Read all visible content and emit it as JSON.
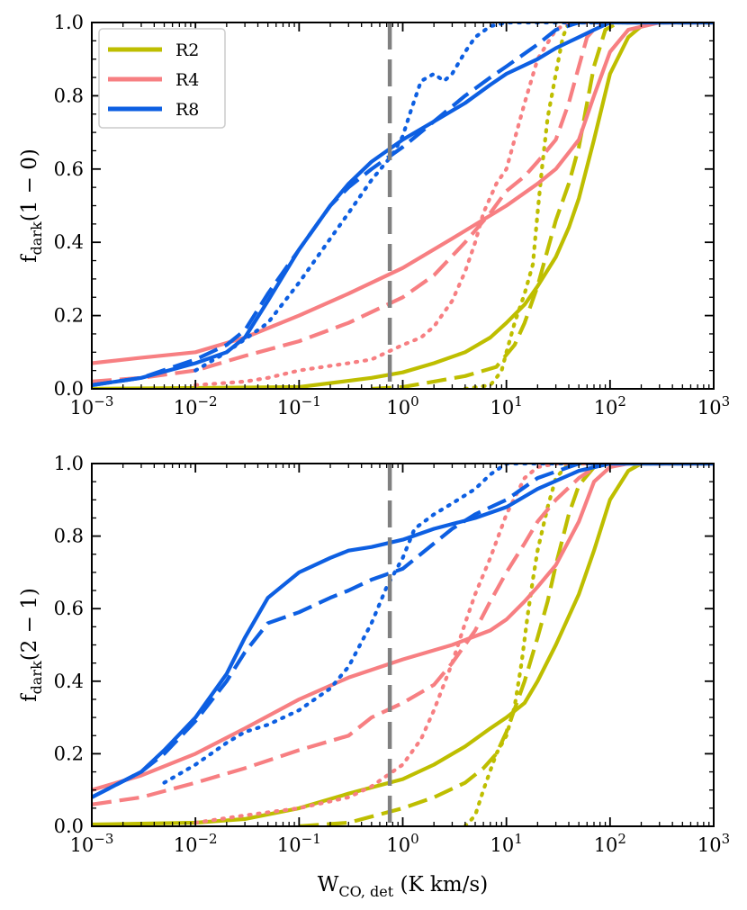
{
  "chart_data": [
    {
      "type": "line",
      "panel": "top",
      "ylabel_main": "f",
      "ylabel_sub": "dark",
      "ylabel_rest": "(1 − 0)",
      "xscale": "log",
      "xlim": [
        0.001,
        1000
      ],
      "ylim": [
        0,
        1
      ],
      "xticks": [
        {
          "value": 0.001,
          "base": "10",
          "exp": "−3"
        },
        {
          "value": 0.01,
          "base": "10",
          "exp": "−2"
        },
        {
          "value": 0.1,
          "base": "10",
          "exp": "−1"
        },
        {
          "value": 1,
          "base": "10",
          "exp": "0"
        },
        {
          "value": 10,
          "base": "10",
          "exp": "1"
        },
        {
          "value": 100,
          "base": "10",
          "exp": "2"
        },
        {
          "value": 1000,
          "base": "10",
          "exp": "3"
        }
      ],
      "yticks": [
        {
          "value": 0,
          "label": "0.0"
        },
        {
          "value": 0.2,
          "label": "0.2"
        },
        {
          "value": 0.4,
          "label": "0.4"
        },
        {
          "value": 0.6,
          "label": "0.6"
        },
        {
          "value": 0.8,
          "label": "0.8"
        },
        {
          "value": 1,
          "label": "1.0"
        }
      ],
      "vline_x": 0.75,
      "legend": {
        "placement": "top-left",
        "entries": [
          {
            "label": "R2",
            "color": "#BEBE00"
          },
          {
            "label": "R4",
            "color": "#F77F82"
          },
          {
            "label": "R8",
            "color": "#0D5FE2"
          }
        ]
      },
      "series": [
        {
          "name": "R2",
          "style": "solid",
          "color": "#BEBE00",
          "x": [
            0.001,
            0.1,
            0.5,
            1,
            2,
            4,
            7,
            10,
            15,
            20,
            30,
            40,
            50,
            70,
            100,
            150,
            200,
            250,
            1000
          ],
          "y": [
            0,
            0.005,
            0.03,
            0.045,
            0.07,
            0.1,
            0.14,
            0.18,
            0.23,
            0.28,
            0.36,
            0.44,
            0.52,
            0.68,
            0.86,
            0.96,
            0.99,
            1,
            1
          ]
        },
        {
          "name": "R2",
          "style": "dashed",
          "color": "#BEBE00",
          "x": [
            0.5,
            1,
            2,
            4,
            8,
            12,
            15,
            20,
            25,
            30,
            40,
            50,
            60,
            70,
            90,
            120,
            1000
          ],
          "y": [
            0,
            0.005,
            0.02,
            0.035,
            0.06,
            0.12,
            0.18,
            0.28,
            0.38,
            0.46,
            0.56,
            0.66,
            0.78,
            0.88,
            0.98,
            1,
            1
          ]
        },
        {
          "name": "R2",
          "style": "dotted",
          "color": "#BEBE00",
          "x": [
            4,
            7,
            8,
            9,
            10,
            12,
            15,
            18,
            20,
            22,
            25,
            30,
            35,
            40,
            1000
          ],
          "y": [
            0,
            0.01,
            0.03,
            0.05,
            0.1,
            0.18,
            0.26,
            0.34,
            0.48,
            0.6,
            0.74,
            0.86,
            0.96,
            1,
            1
          ]
        },
        {
          "name": "R4",
          "style": "solid",
          "color": "#F77F82",
          "x": [
            0.001,
            0.003,
            0.01,
            0.03,
            0.1,
            0.3,
            1,
            3,
            10,
            20,
            30,
            50,
            70,
            100,
            150,
            300,
            1000
          ],
          "y": [
            0.07,
            0.085,
            0.1,
            0.14,
            0.2,
            0.26,
            0.33,
            0.41,
            0.5,
            0.56,
            0.6,
            0.68,
            0.8,
            0.92,
            0.98,
            1,
            1
          ]
        },
        {
          "name": "R4",
          "style": "dashed",
          "color": "#F77F82",
          "x": [
            0.001,
            0.003,
            0.01,
            0.03,
            0.1,
            0.3,
            1,
            2,
            4,
            7,
            10,
            15,
            20,
            30,
            40,
            50,
            60,
            80,
            1000
          ],
          "y": [
            0.02,
            0.03,
            0.05,
            0.09,
            0.13,
            0.18,
            0.25,
            0.31,
            0.4,
            0.48,
            0.54,
            0.58,
            0.62,
            0.68,
            0.78,
            0.88,
            0.96,
            1,
            1
          ]
        },
        {
          "name": "R4",
          "style": "dotted",
          "color": "#F77F82",
          "x": [
            0.01,
            0.03,
            0.05,
            0.1,
            0.3,
            0.5,
            1,
            1.5,
            2,
            3,
            4,
            5,
            6,
            8,
            10,
            15,
            20,
            30,
            40,
            1000
          ],
          "y": [
            0.01,
            0.02,
            0.03,
            0.05,
            0.07,
            0.08,
            0.12,
            0.14,
            0.17,
            0.24,
            0.32,
            0.4,
            0.48,
            0.56,
            0.6,
            0.78,
            0.9,
            0.98,
            1,
            1
          ]
        },
        {
          "name": "R8",
          "style": "solid",
          "color": "#0D5FE2",
          "x": [
            0.001,
            0.003,
            0.01,
            0.02,
            0.03,
            0.05,
            0.1,
            0.2,
            0.3,
            0.5,
            1,
            2,
            4,
            7,
            10,
            20,
            30,
            50,
            70,
            100,
            1000
          ],
          "y": [
            0.01,
            0.03,
            0.07,
            0.1,
            0.14,
            0.24,
            0.38,
            0.5,
            0.56,
            0.62,
            0.68,
            0.73,
            0.78,
            0.83,
            0.86,
            0.9,
            0.93,
            0.96,
            0.98,
            1,
            1
          ]
        },
        {
          "name": "R8",
          "style": "dashed",
          "color": "#0D5FE2",
          "x": [
            0.001,
            0.003,
            0.01,
            0.02,
            0.03,
            0.05,
            0.1,
            0.2,
            0.3,
            0.5,
            1,
            2,
            4,
            7,
            10,
            20,
            30,
            50,
            1000
          ],
          "y": [
            0.01,
            0.03,
            0.08,
            0.12,
            0.16,
            0.26,
            0.38,
            0.5,
            0.55,
            0.6,
            0.66,
            0.73,
            0.8,
            0.85,
            0.88,
            0.94,
            0.98,
            1,
            1
          ]
        },
        {
          "name": "R8",
          "style": "dotted",
          "color": "#0D5FE2",
          "x": [
            0.01,
            0.02,
            0.05,
            0.1,
            0.2,
            0.3,
            0.5,
            0.8,
            1,
            1.2,
            1.5,
            2,
            2.5,
            3,
            4,
            5,
            7,
            10,
            1000
          ],
          "y": [
            0.05,
            0.1,
            0.18,
            0.29,
            0.41,
            0.48,
            0.57,
            0.64,
            0.69,
            0.76,
            0.84,
            0.86,
            0.84,
            0.86,
            0.92,
            0.96,
            0.99,
            1,
            1
          ]
        }
      ]
    },
    {
      "type": "line",
      "panel": "bottom",
      "ylabel_main": "f",
      "ylabel_sub": "dark",
      "ylabel_rest": "(2 − 1)",
      "xlabel_main": "W",
      "xlabel_sub": "CO, det",
      "xlabel_rest": " (K km/s)",
      "xscale": "log",
      "xlim": [
        0.001,
        1000
      ],
      "ylim": [
        0,
        1
      ],
      "xticks": [
        {
          "value": 0.001,
          "base": "10",
          "exp": "−3"
        },
        {
          "value": 0.01,
          "base": "10",
          "exp": "−2"
        },
        {
          "value": 0.1,
          "base": "10",
          "exp": "−1"
        },
        {
          "value": 1,
          "base": "10",
          "exp": "0"
        },
        {
          "value": 10,
          "base": "10",
          "exp": "1"
        },
        {
          "value": 100,
          "base": "10",
          "exp": "2"
        },
        {
          "value": 1000,
          "base": "10",
          "exp": "3"
        }
      ],
      "yticks": [
        {
          "value": 0,
          "label": "0.0"
        },
        {
          "value": 0.2,
          "label": "0.2"
        },
        {
          "value": 0.4,
          "label": "0.4"
        },
        {
          "value": 0.6,
          "label": "0.6"
        },
        {
          "value": 0.8,
          "label": "0.8"
        },
        {
          "value": 1,
          "label": "1.0"
        }
      ],
      "vline_x": 0.75,
      "series": [
        {
          "name": "R2",
          "style": "solid",
          "color": "#BEBE00",
          "x": [
            0.001,
            0.01,
            0.03,
            0.1,
            0.3,
            1,
            2,
            4,
            7,
            10,
            15,
            20,
            30,
            50,
            70,
            100,
            150,
            200,
            1000
          ],
          "y": [
            0.005,
            0.01,
            0.02,
            0.05,
            0.09,
            0.13,
            0.17,
            0.22,
            0.27,
            0.3,
            0.34,
            0.4,
            0.5,
            0.64,
            0.76,
            0.9,
            0.98,
            1,
            1
          ]
        },
        {
          "name": "R2",
          "style": "dashed",
          "color": "#BEBE00",
          "x": [
            0.1,
            0.3,
            1,
            2,
            4,
            6,
            8,
            10,
            15,
            20,
            25,
            30,
            40,
            50,
            70,
            100,
            1000
          ],
          "y": [
            0,
            0.01,
            0.05,
            0.08,
            0.12,
            0.16,
            0.2,
            0.26,
            0.4,
            0.52,
            0.62,
            0.72,
            0.86,
            0.94,
            0.99,
            1,
            1
          ]
        },
        {
          "name": "R2",
          "style": "dotted",
          "color": "#BEBE00",
          "x": [
            4,
            5,
            6,
            8,
            10,
            12,
            14,
            16,
            18,
            20,
            25,
            30,
            40,
            1000
          ],
          "y": [
            0,
            0.03,
            0.1,
            0.2,
            0.25,
            0.33,
            0.45,
            0.58,
            0.68,
            0.76,
            0.88,
            0.96,
            1,
            1
          ]
        },
        {
          "name": "R4",
          "style": "solid",
          "color": "#F77F82",
          "x": [
            0.001,
            0.003,
            0.01,
            0.03,
            0.1,
            0.3,
            1,
            3,
            7,
            10,
            15,
            20,
            30,
            50,
            70,
            100,
            150,
            1000
          ],
          "y": [
            0.1,
            0.14,
            0.2,
            0.27,
            0.35,
            0.41,
            0.46,
            0.5,
            0.54,
            0.57,
            0.62,
            0.66,
            0.72,
            0.84,
            0.95,
            0.99,
            1,
            1
          ]
        },
        {
          "name": "R4",
          "style": "dashed",
          "color": "#F77F82",
          "x": [
            0.001,
            0.003,
            0.01,
            0.03,
            0.1,
            0.3,
            0.5,
            1,
            2,
            3,
            5,
            7,
            10,
            15,
            20,
            30,
            50,
            80,
            1000
          ],
          "y": [
            0.06,
            0.08,
            0.12,
            0.16,
            0.21,
            0.25,
            0.3,
            0.34,
            0.39,
            0.45,
            0.54,
            0.62,
            0.7,
            0.78,
            0.84,
            0.9,
            0.96,
            1,
            1
          ]
        },
        {
          "name": "R4",
          "style": "dotted",
          "color": "#F77F82",
          "x": [
            0.01,
            0.03,
            0.1,
            0.3,
            0.5,
            1,
            1.5,
            2,
            3,
            4,
            5,
            7,
            10,
            15,
            20,
            30,
            1000
          ],
          "y": [
            0.01,
            0.03,
            0.05,
            0.08,
            0.11,
            0.17,
            0.24,
            0.32,
            0.45,
            0.56,
            0.64,
            0.74,
            0.86,
            0.96,
            0.99,
            1,
            1
          ]
        },
        {
          "name": "R8",
          "style": "solid",
          "color": "#0D5FE2",
          "x": [
            0.001,
            0.003,
            0.005,
            0.01,
            0.02,
            0.03,
            0.05,
            0.1,
            0.2,
            0.3,
            0.5,
            1,
            2,
            5,
            10,
            20,
            50,
            100,
            1000
          ],
          "y": [
            0.08,
            0.15,
            0.21,
            0.3,
            0.42,
            0.52,
            0.63,
            0.7,
            0.74,
            0.76,
            0.77,
            0.79,
            0.82,
            0.85,
            0.88,
            0.93,
            0.98,
            1,
            1
          ]
        },
        {
          "name": "R8",
          "style": "dashed",
          "color": "#0D5FE2",
          "x": [
            0.001,
            0.003,
            0.005,
            0.01,
            0.02,
            0.03,
            0.05,
            0.1,
            0.2,
            0.3,
            0.5,
            1,
            2,
            3,
            5,
            10,
            20,
            50,
            100,
            1000
          ],
          "y": [
            0.08,
            0.15,
            0.2,
            0.29,
            0.4,
            0.48,
            0.56,
            0.59,
            0.63,
            0.65,
            0.68,
            0.71,
            0.78,
            0.82,
            0.86,
            0.9,
            0.96,
            1,
            1,
            1
          ]
        },
        {
          "name": "R8",
          "style": "dotted",
          "color": "#0D5FE2",
          "x": [
            0.005,
            0.01,
            0.02,
            0.03,
            0.05,
            0.1,
            0.2,
            0.3,
            0.5,
            0.7,
            1,
            1.3,
            2,
            3,
            5,
            7,
            10,
            1000
          ],
          "y": [
            0.12,
            0.17,
            0.23,
            0.26,
            0.28,
            0.32,
            0.38,
            0.44,
            0.56,
            0.66,
            0.74,
            0.82,
            0.86,
            0.89,
            0.93,
            0.97,
            1,
            1
          ]
        }
      ]
    }
  ]
}
